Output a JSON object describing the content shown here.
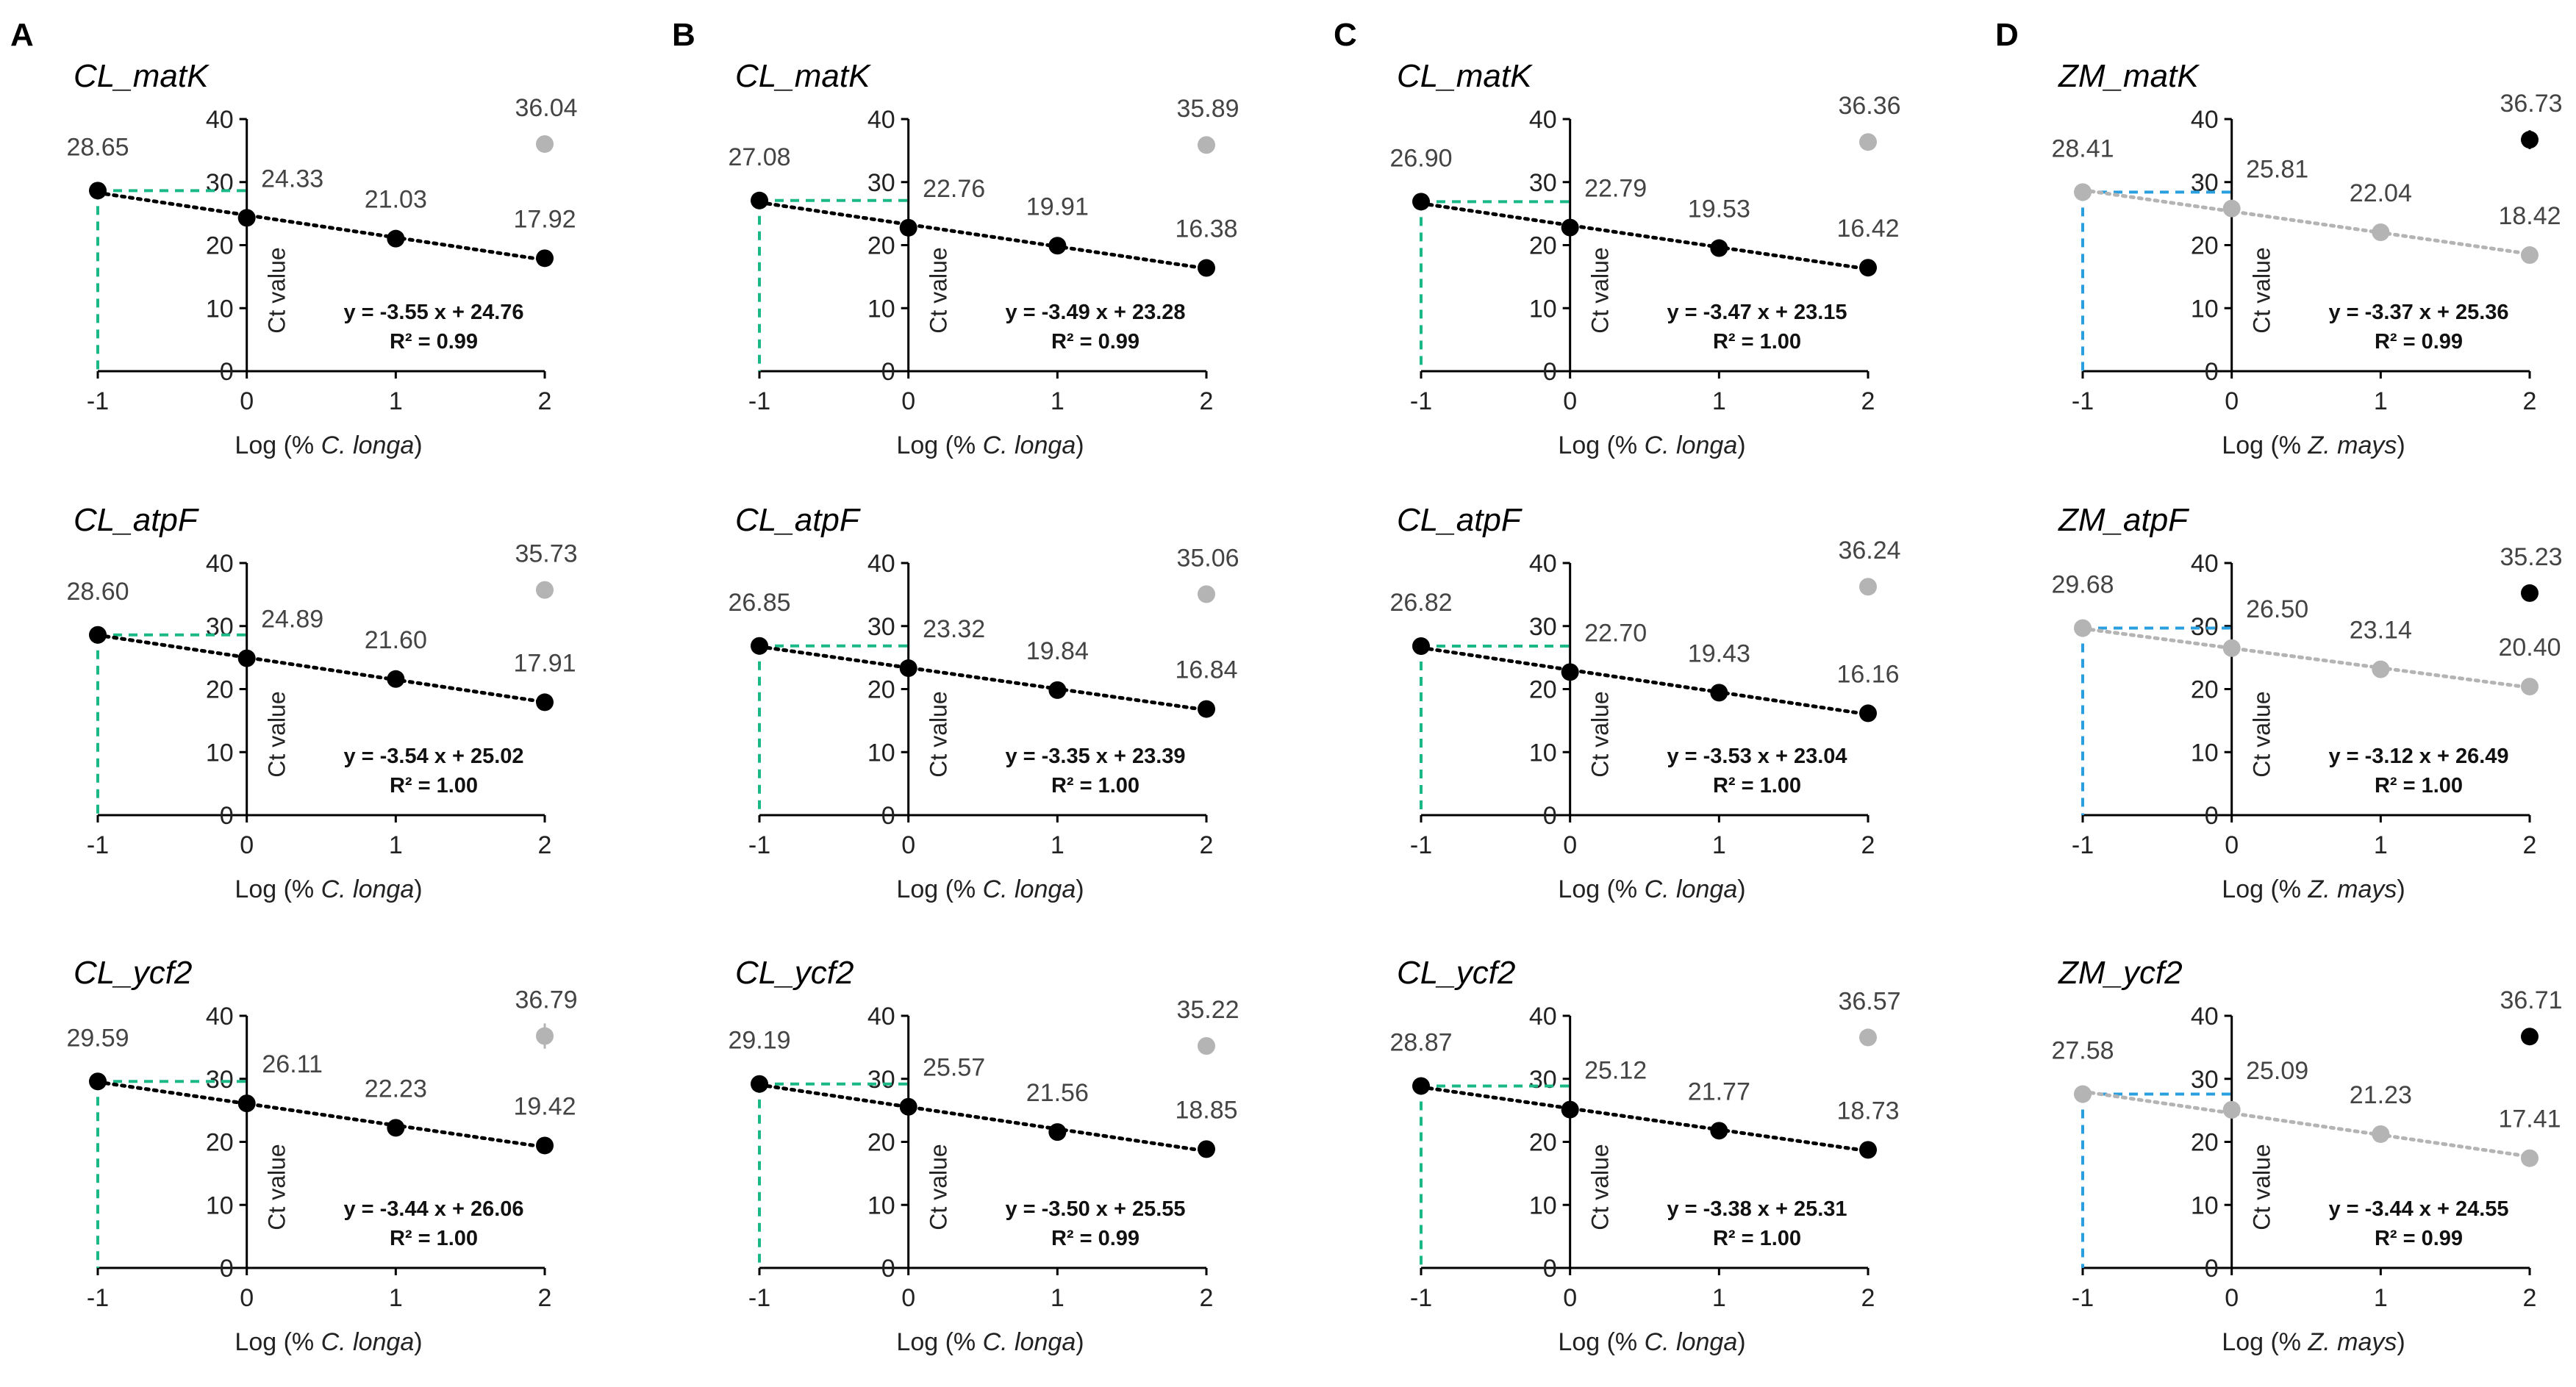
{
  "figure": {
    "panels": [
      {
        "letter": "A",
        "title_index": 0
      },
      {
        "letter": "B",
        "title_index": 0
      },
      {
        "letter": "C",
        "title_index": 0
      },
      {
        "letter": "D",
        "title_index": 0
      }
    ]
  },
  "colors": {
    "black_point": "#000000",
    "grey_point": "#b4b4b4",
    "green_guide": "#1ab886",
    "blue_guide": "#2a9fe0",
    "axis": "#000000",
    "label_grey": "#444444"
  },
  "chart_data": [
    {
      "type": "scatter",
      "panel": "A",
      "title": "CL_matK",
      "xlabel_prefix": "Log (% ",
      "xlabel_species": "C. longa",
      "xlabel_suffix": ")",
      "ylabel": "Ct value",
      "x": [
        -1,
        0,
        1,
        2
      ],
      "values": [
        28.65,
        24.33,
        21.03,
        17.92
      ],
      "value_labels": [
        "28.65",
        "24.33",
        "21.03",
        "17.92"
      ],
      "outlier": {
        "x": 2,
        "value": 36.04,
        "label": "36.04"
      },
      "equation": "y = -3.55 x + 24.76",
      "r2": "R² = 0.99",
      "xlim": [
        -1,
        2
      ],
      "ylim": [
        0,
        40
      ],
      "xticks": [
        "-1",
        "0",
        "1",
        "2"
      ],
      "yticks": [
        "0",
        "10",
        "20",
        "30",
        "40"
      ],
      "trend_color": "black",
      "guide_color": "green",
      "errors": [
        0,
        0,
        0,
        0
      ],
      "outlier_error": 0,
      "grey_labels": true
    },
    {
      "type": "scatter",
      "panel": "B",
      "title": "CL_matK",
      "xlabel_prefix": "Log (% ",
      "xlabel_species": "C. longa",
      "xlabel_suffix": ")",
      "ylabel": "Ct value",
      "x": [
        -1,
        0,
        1,
        2
      ],
      "values": [
        27.08,
        22.76,
        19.91,
        16.38
      ],
      "value_labels": [
        "27.08",
        "22.76",
        "19.91",
        "16.38"
      ],
      "outlier": {
        "x": 2,
        "value": 35.89,
        "label": "35.89"
      },
      "equation": "y = -3.49 x + 23.28",
      "r2": "R² = 0.99",
      "xlim": [
        -1,
        2
      ],
      "ylim": [
        0,
        40
      ],
      "xticks": [
        "-1",
        "0",
        "1",
        "2"
      ],
      "yticks": [
        "0",
        "10",
        "20",
        "30",
        "40"
      ],
      "trend_color": "black",
      "guide_color": "green",
      "errors": [
        0,
        0,
        0,
        0
      ],
      "outlier_error": 0,
      "grey_labels": false
    },
    {
      "type": "scatter",
      "panel": "C",
      "title": "CL_matK",
      "xlabel_prefix": "Log (% ",
      "xlabel_species": "C. longa",
      "xlabel_suffix": ")",
      "ylabel": "Ct value",
      "x": [
        -1,
        0,
        1,
        2
      ],
      "values": [
        26.9,
        22.79,
        19.53,
        16.42
      ],
      "value_labels": [
        "26.90",
        "22.79",
        "19.53",
        "16.42"
      ],
      "outlier": {
        "x": 2,
        "value": 36.36,
        "label": "36.36"
      },
      "equation": "y = -3.47 x + 23.15",
      "r2": "R² = 1.00",
      "xlim": [
        -1,
        2
      ],
      "ylim": [
        0,
        40
      ],
      "xticks": [
        "-1",
        "0",
        "1",
        "2"
      ],
      "yticks": [
        "0",
        "10",
        "20",
        "30",
        "40"
      ],
      "trend_color": "black",
      "guide_color": "green",
      "errors": [
        0,
        0,
        0,
        0
      ],
      "outlier_error": 0,
      "grey_labels": false
    },
    {
      "type": "scatter",
      "panel": "D",
      "title": "ZM_matK",
      "xlabel_prefix": "Log (% ",
      "xlabel_species": "Z. mays",
      "xlabel_suffix": ")",
      "ylabel": "Ct value",
      "x": [
        -1,
        0,
        1,
        2
      ],
      "values": [
        28.41,
        25.81,
        22.04,
        18.42
      ],
      "value_labels": [
        "28.41",
        "25.81",
        "22.04",
        "18.42"
      ],
      "outlier": {
        "x": 2,
        "value": 36.73,
        "label": "36.73"
      },
      "equation": "y = -3.37 x + 25.36",
      "r2": "R² = 0.99",
      "xlim": [
        -1,
        2
      ],
      "ylim": [
        0,
        40
      ],
      "xticks": [
        "-1",
        "0",
        "1",
        "2"
      ],
      "yticks": [
        "0",
        "10",
        "20",
        "30",
        "40"
      ],
      "trend_color": "grey",
      "guide_color": "blue",
      "errors": [
        0,
        0,
        0,
        0
      ],
      "outlier_error": 1.5,
      "grey_labels": false
    },
    {
      "type": "scatter",
      "panel": "A",
      "title": "CL_atpF",
      "xlabel_prefix": "Log (% ",
      "xlabel_species": "C. longa",
      "xlabel_suffix": ")",
      "ylabel": "Ct value",
      "x": [
        -1,
        0,
        1,
        2
      ],
      "values": [
        28.6,
        24.89,
        21.6,
        17.91
      ],
      "value_labels": [
        "28.60",
        "24.89",
        "21.60",
        "17.91"
      ],
      "outlier": {
        "x": 2,
        "value": 35.73,
        "label": "35.73"
      },
      "equation": "y = -3.54 x + 25.02",
      "r2": "R² = 1.00",
      "xlim": [
        -1,
        2
      ],
      "ylim": [
        0,
        40
      ],
      "xticks": [
        "-1",
        "0",
        "1",
        "2"
      ],
      "yticks": [
        "0",
        "10",
        "20",
        "30",
        "40"
      ],
      "trend_color": "black",
      "guide_color": "green",
      "errors": [
        0,
        0,
        0,
        0
      ],
      "outlier_error": 0,
      "grey_labels": false
    },
    {
      "type": "scatter",
      "panel": "B",
      "title": "CL_atpF",
      "xlabel_prefix": "Log (% ",
      "xlabel_species": "C. longa",
      "xlabel_suffix": ")",
      "ylabel": "Ct value",
      "x": [
        -1,
        0,
        1,
        2
      ],
      "values": [
        26.85,
        23.32,
        19.84,
        16.84
      ],
      "value_labels": [
        "26.85",
        "23.32",
        "19.84",
        "16.84"
      ],
      "outlier": {
        "x": 2,
        "value": 35.06,
        "label": "35.06"
      },
      "equation": "y = -3.35 x + 23.39",
      "r2": "R² = 1.00",
      "xlim": [
        -1,
        2
      ],
      "ylim": [
        0,
        40
      ],
      "xticks": [
        "-1",
        "0",
        "1",
        "2"
      ],
      "yticks": [
        "0",
        "10",
        "20",
        "30",
        "40"
      ],
      "trend_color": "black",
      "guide_color": "green",
      "errors": [
        0,
        0,
        0,
        0
      ],
      "outlier_error": 0,
      "grey_labels": false
    },
    {
      "type": "scatter",
      "panel": "C",
      "title": "CL_atpF",
      "xlabel_prefix": "Log (% ",
      "xlabel_species": "C. longa",
      "xlabel_suffix": ")",
      "ylabel": "Ct value",
      "x": [
        -1,
        0,
        1,
        2
      ],
      "values": [
        26.82,
        22.7,
        19.43,
        16.16
      ],
      "value_labels": [
        "26.82",
        "22.70",
        "19.43",
        "16.16"
      ],
      "outlier": {
        "x": 2,
        "value": 36.24,
        "label": "36.24"
      },
      "equation": "y = -3.53 x + 23.04",
      "r2": "R² = 1.00",
      "xlim": [
        -1,
        2
      ],
      "ylim": [
        0,
        40
      ],
      "xticks": [
        "-1",
        "0",
        "1",
        "2"
      ],
      "yticks": [
        "0",
        "10",
        "20",
        "30",
        "40"
      ],
      "trend_color": "black",
      "guide_color": "green",
      "errors": [
        0,
        0,
        0,
        0
      ],
      "outlier_error": 0,
      "grey_labels": false
    },
    {
      "type": "scatter",
      "panel": "D",
      "title": "ZM_atpF",
      "xlabel_prefix": "Log (% ",
      "xlabel_species": "Z. mays",
      "xlabel_suffix": ")",
      "ylabel": "Ct value",
      "x": [
        -1,
        0,
        1,
        2
      ],
      "values": [
        29.68,
        26.5,
        23.14,
        20.4
      ],
      "value_labels": [
        "29.68",
        "26.50",
        "23.14",
        "20.40"
      ],
      "outlier": {
        "x": 2,
        "value": 35.23,
        "label": "35.23"
      },
      "equation": "y = -3.12 x + 26.49",
      "r2": "R² = 1.00",
      "xlim": [
        -1,
        2
      ],
      "ylim": [
        0,
        40
      ],
      "xticks": [
        "-1",
        "0",
        "1",
        "2"
      ],
      "yticks": [
        "0",
        "10",
        "20",
        "30",
        "40"
      ],
      "trend_color": "grey",
      "guide_color": "blue",
      "errors": [
        0,
        0,
        0,
        0
      ],
      "outlier_error": 0.8,
      "grey_labels": false
    },
    {
      "type": "scatter",
      "panel": "A",
      "title": "CL_ycf2",
      "xlabel_prefix": "Log (% ",
      "xlabel_species": "C. longa",
      "xlabel_suffix": ")",
      "ylabel": "Ct value",
      "x": [
        -1,
        0,
        1,
        2
      ],
      "values": [
        29.59,
        26.11,
        22.23,
        19.42
      ],
      "value_labels": [
        "29.59",
        "26.11",
        "22.23",
        "19.42"
      ],
      "outlier": {
        "x": 2,
        "value": 36.79,
        "label": "36.79"
      },
      "equation": "y = -3.44 x + 26.06",
      "r2": "R² = 1.00",
      "xlim": [
        -1,
        2
      ],
      "ylim": [
        0,
        40
      ],
      "xticks": [
        "-1",
        "0",
        "1",
        "2"
      ],
      "yticks": [
        "0",
        "10",
        "20",
        "30",
        "40"
      ],
      "trend_color": "black",
      "guide_color": "green",
      "errors": [
        0,
        0,
        0,
        0
      ],
      "outlier_error": 2.0,
      "grey_labels": false
    },
    {
      "type": "scatter",
      "panel": "B",
      "title": "CL_ycf2",
      "xlabel_prefix": "Log (% ",
      "xlabel_species": "C. longa",
      "xlabel_suffix": ")",
      "ylabel": "Ct value",
      "x": [
        -1,
        0,
        1,
        2
      ],
      "values": [
        29.19,
        25.57,
        21.56,
        18.85
      ],
      "value_labels": [
        "29.19",
        "25.57",
        "21.56",
        "18.85"
      ],
      "outlier": {
        "x": 2,
        "value": 35.22,
        "label": "35.22"
      },
      "equation": "y = -3.50 x + 25.55",
      "r2": "R² = 0.99",
      "xlim": [
        -1,
        2
      ],
      "ylim": [
        0,
        40
      ],
      "xticks": [
        "-1",
        "0",
        "1",
        "2"
      ],
      "yticks": [
        "0",
        "10",
        "20",
        "30",
        "40"
      ],
      "trend_color": "black",
      "guide_color": "green",
      "errors": [
        0,
        0,
        0,
        0
      ],
      "outlier_error": 0.8,
      "grey_labels": false
    },
    {
      "type": "scatter",
      "panel": "C",
      "title": "CL_ycf2",
      "xlabel_prefix": "Log (% ",
      "xlabel_species": "C. longa",
      "xlabel_suffix": ")",
      "ylabel": "Ct value",
      "x": [
        -1,
        0,
        1,
        2
      ],
      "values": [
        28.87,
        25.12,
        21.77,
        18.73
      ],
      "value_labels": [
        "28.87",
        "25.12",
        "21.77",
        "18.73"
      ],
      "outlier": {
        "x": 2,
        "value": 36.57,
        "label": "36.57"
      },
      "equation": "y = -3.38 x + 25.31",
      "r2": "R² = 1.00",
      "xlim": [
        -1,
        2
      ],
      "ylim": [
        0,
        40
      ],
      "xticks": [
        "-1",
        "0",
        "1",
        "2"
      ],
      "yticks": [
        "0",
        "10",
        "20",
        "30",
        "40"
      ],
      "trend_color": "black",
      "guide_color": "green",
      "errors": [
        0,
        0,
        0,
        0
      ],
      "outlier_error": 0.8,
      "grey_labels": false
    },
    {
      "type": "scatter",
      "panel": "D",
      "title": "ZM_ycf2",
      "xlabel_prefix": "Log (% ",
      "xlabel_species": "Z. mays",
      "xlabel_suffix": ")",
      "ylabel": "Ct value",
      "x": [
        -1,
        0,
        1,
        2
      ],
      "values": [
        27.58,
        25.09,
        21.23,
        17.41
      ],
      "value_labels": [
        "27.58",
        "25.09",
        "21.23",
        "17.41"
      ],
      "outlier": {
        "x": 2,
        "value": 36.71,
        "label": "36.71"
      },
      "equation": "y = -3.44 x + 24.55",
      "r2": "R² = 0.99",
      "xlim": [
        -1,
        2
      ],
      "ylim": [
        0,
        40
      ],
      "xticks": [
        "-1",
        "0",
        "1",
        "2"
      ],
      "yticks": [
        "0",
        "10",
        "20",
        "30",
        "40"
      ],
      "trend_color": "grey",
      "guide_color": "blue",
      "errors": [
        0,
        0,
        0,
        0
      ],
      "outlier_error": 0,
      "grey_labels": false
    }
  ]
}
